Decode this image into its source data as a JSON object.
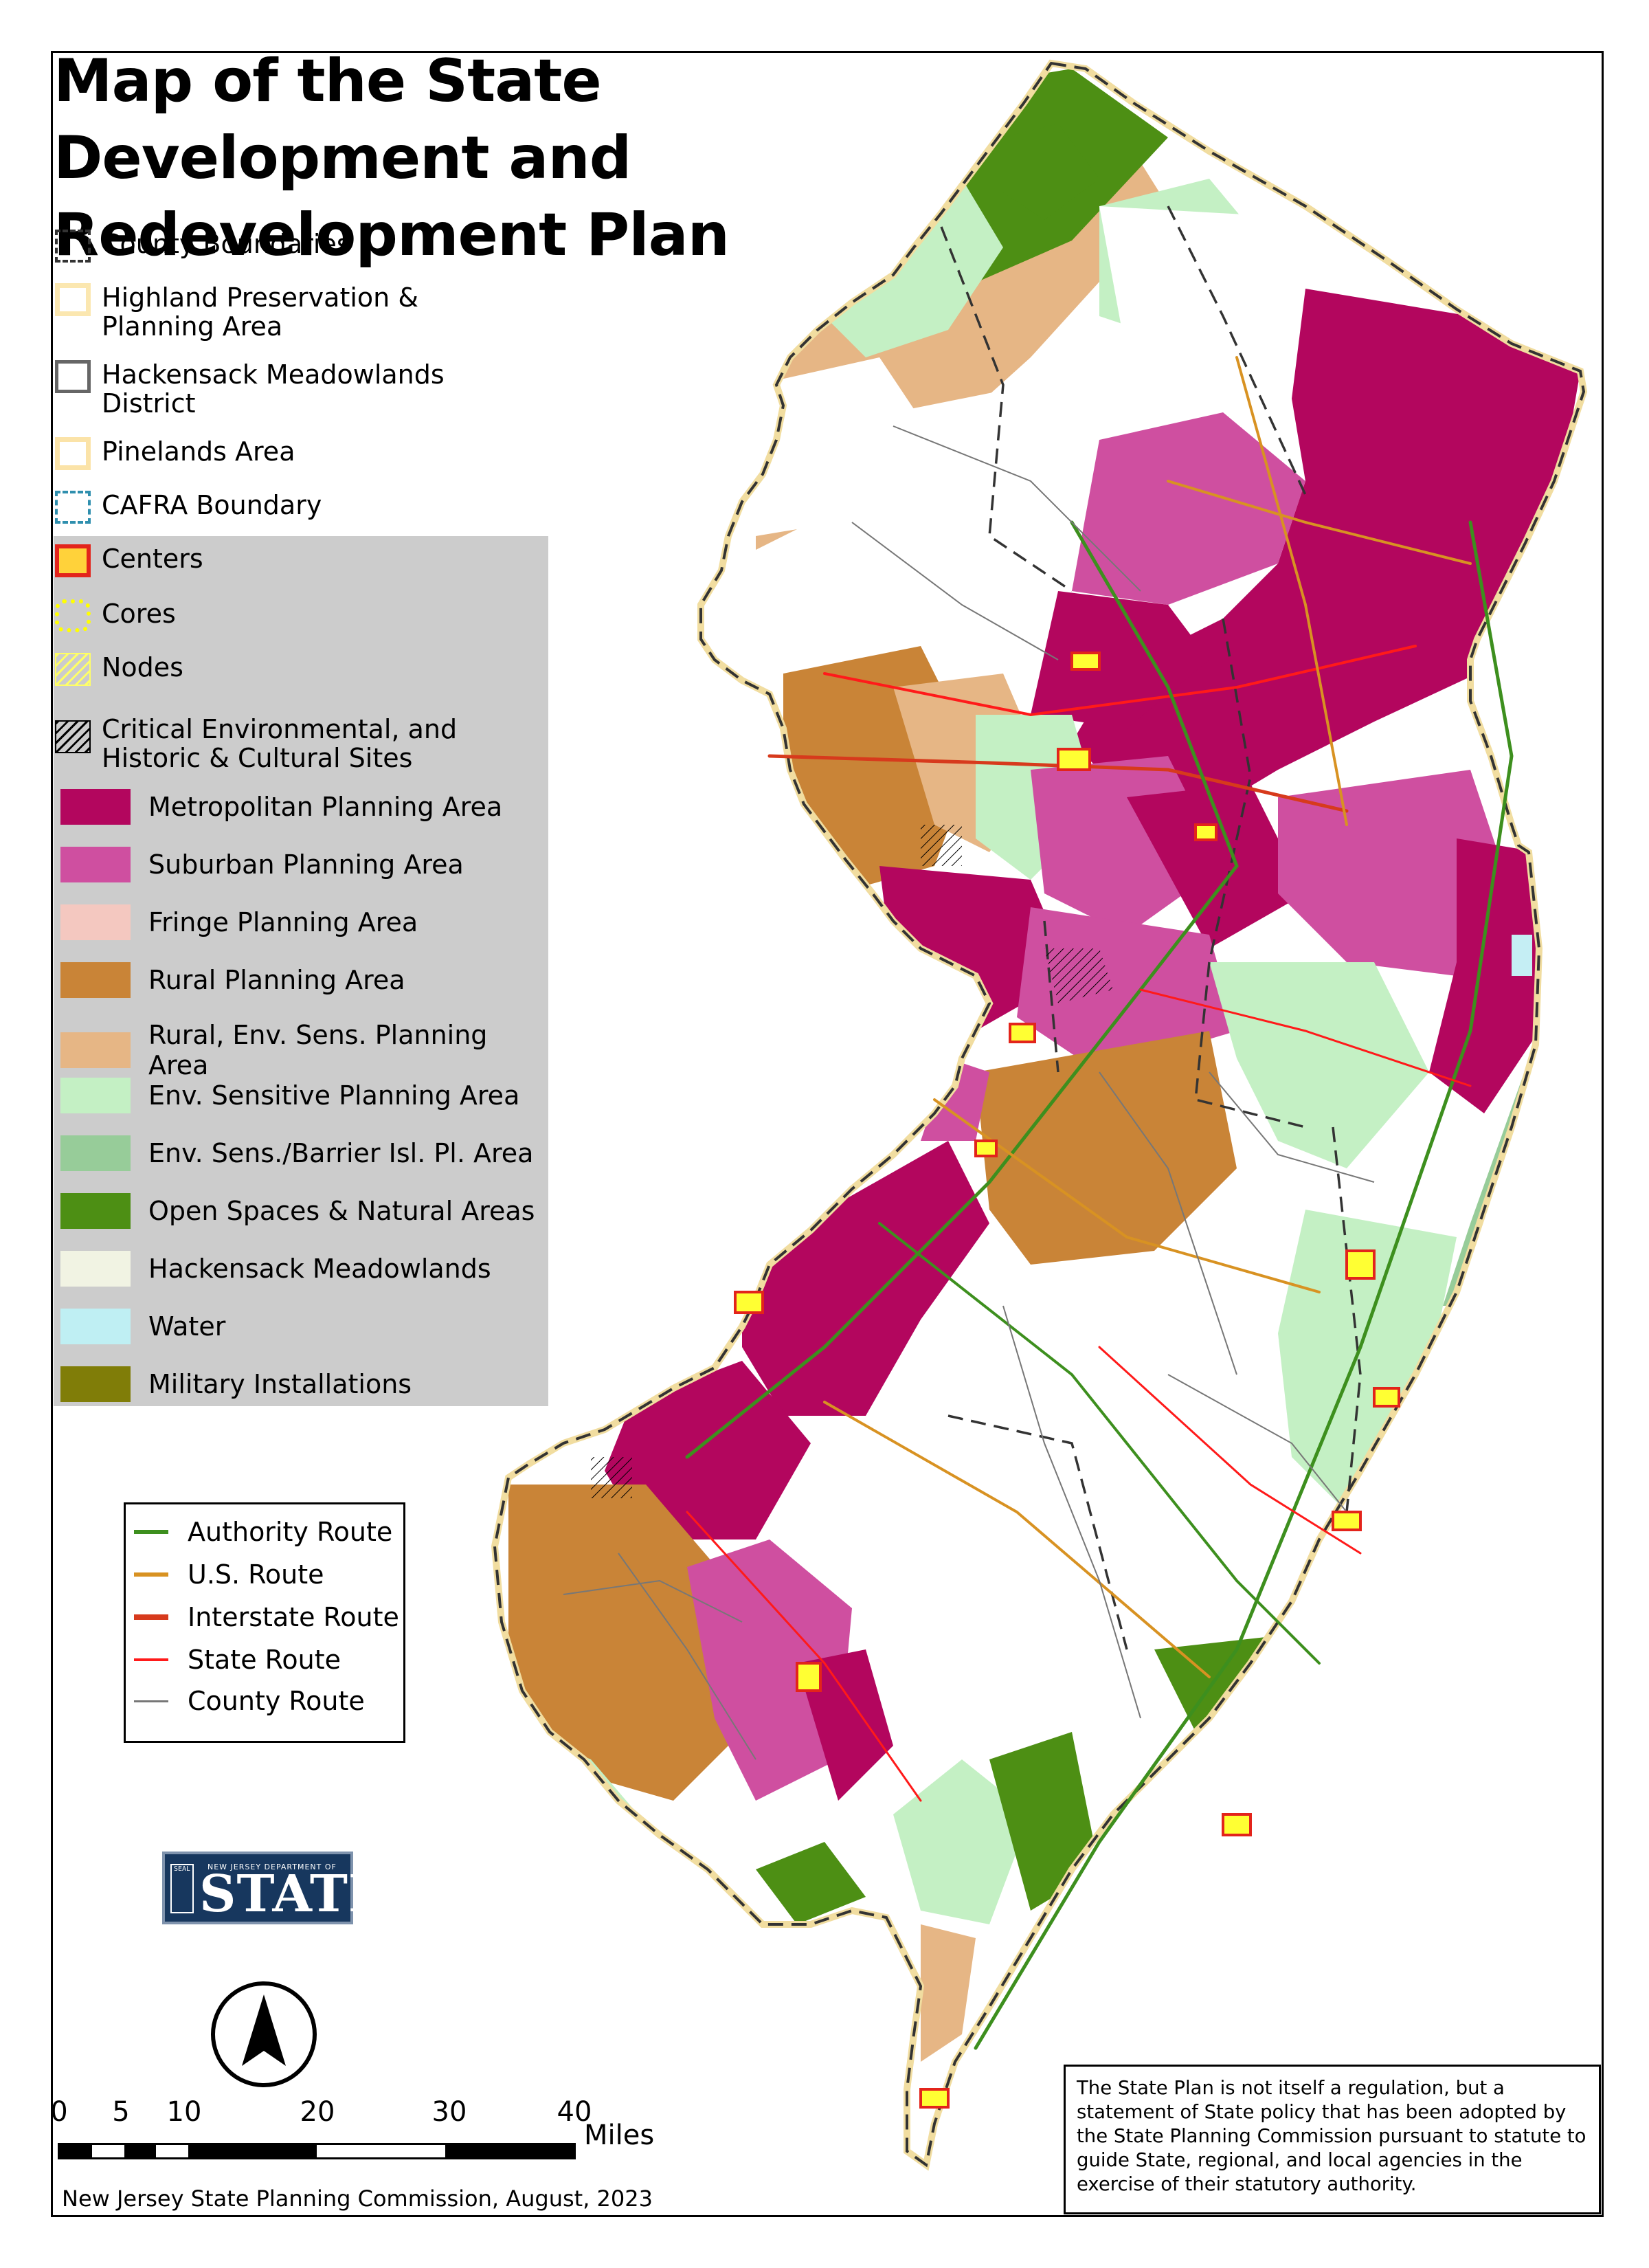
{
  "title": "Map of the State Development and Redevelopment Plan",
  "legend_outline": [
    {
      "label": "County Boundaries",
      "symbol": "dashed-box",
      "color": "#333333"
    },
    {
      "label": "Highland Preservation & Planning Area",
      "symbol": "outline-box",
      "color": "#fbe7b0"
    },
    {
      "label": "Hackensack Meadowlands District",
      "symbol": "outline-box",
      "color": "#666666"
    },
    {
      "label": "Pinelands Area",
      "symbol": "outline-box",
      "color": "#fbe3a8"
    },
    {
      "label": "CAFRA Boundary",
      "symbol": "dashed-box",
      "color": "#2f8fae"
    }
  ],
  "legend_overlay": [
    {
      "label": "Centers",
      "symbol": "centers-box",
      "color": "#e3241b"
    },
    {
      "label": "Cores",
      "symbol": "dots",
      "color": "#ffff00"
    },
    {
      "label": "Nodes",
      "symbol": "hatch-yellow",
      "color": "#ffff66"
    },
    {
      "label": "Critical Environmental, and Historic & Cultural Sites",
      "symbol": "hatch-black",
      "color": "#000000"
    }
  ],
  "legend_areas": [
    {
      "label": "Metropolitan Planning Area",
      "color": "#b3065e"
    },
    {
      "label": "Suburban Planning Area",
      "color": "#cf4fa0"
    },
    {
      "label": "Fringe Planning Area",
      "color": "#f4c8c0"
    },
    {
      "label": "Rural Planning Area",
      "color": "#c98437"
    },
    {
      "label": "Rural, Env. Sens. Planning Area",
      "color": "#e6b685"
    },
    {
      "label": "Env. Sensitive Planning Area",
      "color": "#c4f0c4"
    },
    {
      "label": "Env. Sens./Barrier Isl. Pl. Area",
      "color": "#97cc99"
    },
    {
      "label": "Open Spaces & Natural Areas",
      "color": "#4d8f14"
    },
    {
      "label": "Hackensack Meadowlands",
      "color": "#f1f3e3"
    },
    {
      "label": "Water",
      "color": "#bfeff3"
    },
    {
      "label": "Military Installations",
      "color": "#807d08"
    }
  ],
  "routes": [
    {
      "label": "Authority Route",
      "color": "#3d8f1e"
    },
    {
      "label": "U.S. Route",
      "color": "#d89222"
    },
    {
      "label": "Interstate Route",
      "color": "#d73a1c"
    },
    {
      "label": "State Route",
      "color": "#ff1a1a"
    },
    {
      "label": "County Route",
      "color": "#777777"
    }
  ],
  "logo": {
    "small_text": "NEW JERSEY DEPARTMENT OF",
    "big_text": "STATE",
    "seal_text": "SEAL"
  },
  "scale": {
    "ticks": [
      "0",
      "5",
      "10",
      "20",
      "30",
      "40"
    ],
    "unit": "Miles"
  },
  "credit": "New Jersey State Planning Commission, August, 2023",
  "disclaimer": "The State Plan is not itself a regulation, but a statement of State policy that has been adopted by the State Planning Commission pursuant to statute to guide State, regional, and local agencies in the exercise of their statutory authority.",
  "icons": {
    "north": "north-arrow-icon"
  }
}
